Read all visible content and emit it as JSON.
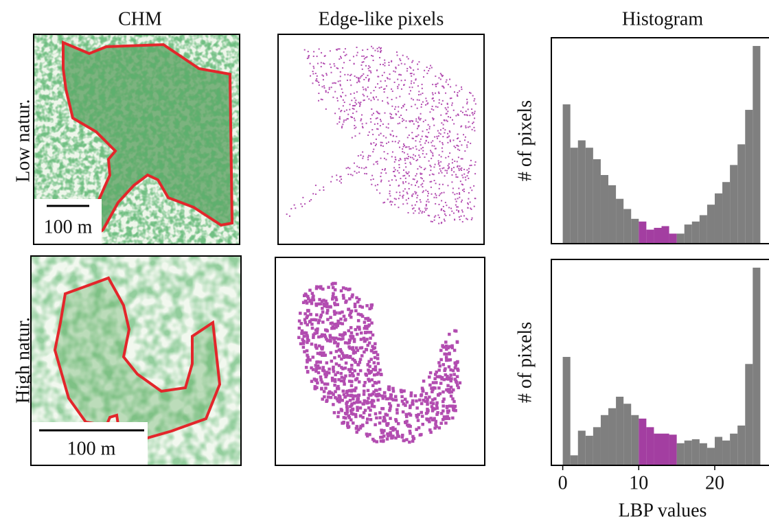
{
  "column_titles": [
    "CHM",
    "Edge-like pixels",
    "Histogram"
  ],
  "row_labels": [
    "Low natur.",
    "High natur."
  ],
  "scale_bars": [
    "100 m",
    "100 m"
  ],
  "chart_data": [
    {
      "type": "histogram",
      "ylabel": "# of pixels",
      "log_y": true,
      "bins": [
        0,
        1,
        2,
        3,
        4,
        5,
        6,
        7,
        8,
        9,
        10,
        11,
        12,
        13,
        14,
        15,
        16,
        17,
        18,
        19,
        20,
        21,
        22,
        23,
        24,
        25,
        26
      ],
      "values": [
        10700,
        2500,
        3200,
        2500,
        1700,
        1000,
        710,
        450,
        320,
        230,
        210,
        160,
        170,
        180,
        140,
        140,
        190,
        210,
        260,
        370,
        540,
        790,
        1400,
        2800,
        8900,
        75900
      ],
      "colors": [
        "#7f7f7f",
        "#7f7f7f",
        "#7f7f7f",
        "#7f7f7f",
        "#7f7f7f",
        "#7f7f7f",
        "#7f7f7f",
        "#7f7f7f",
        "#7f7f7f",
        "#7f7f7f",
        "#a33ea1",
        "#a33ea1",
        "#a33ea1",
        "#a33ea1",
        "#a33ea1",
        "#7f7f7f",
        "#7f7f7f",
        "#7f7f7f",
        "#7f7f7f",
        "#7f7f7f",
        "#7f7f7f",
        "#7f7f7f",
        "#7f7f7f",
        "#7f7f7f",
        "#7f7f7f",
        "#7f7f7f"
      ],
      "xlim": [
        -1.5,
        27.5
      ],
      "ylim": [
        100,
        100000
      ]
    },
    {
      "type": "histogram",
      "ylabel": "# of pixels",
      "xlabel": "LBP values",
      "log_y": true,
      "bins": [
        0,
        1,
        2,
        3,
        4,
        5,
        6,
        7,
        8,
        9,
        10,
        11,
        12,
        13,
        14,
        15,
        16,
        17,
        18,
        19,
        20,
        21,
        22,
        23,
        24,
        25,
        26
      ],
      "values": [
        3800,
        140,
        320,
        270,
        360,
        540,
        680,
        1000,
        790,
        540,
        480,
        360,
        290,
        290,
        280,
        210,
        230,
        240,
        210,
        180,
        260,
        230,
        290,
        380,
        3000,
        75900
      ],
      "colors": [
        "#7f7f7f",
        "#7f7f7f",
        "#7f7f7f",
        "#7f7f7f",
        "#7f7f7f",
        "#7f7f7f",
        "#7f7f7f",
        "#7f7f7f",
        "#7f7f7f",
        "#7f7f7f",
        "#a33ea1",
        "#a33ea1",
        "#a33ea1",
        "#a33ea1",
        "#a33ea1",
        "#7f7f7f",
        "#7f7f7f",
        "#7f7f7f",
        "#7f7f7f",
        "#7f7f7f",
        "#7f7f7f",
        "#7f7f7f",
        "#7f7f7f",
        "#7f7f7f",
        "#7f7f7f",
        "#7f7f7f"
      ],
      "xlim": [
        -1.5,
        27.5
      ],
      "ylim": [
        100,
        100000
      ],
      "xticks": [
        0,
        10,
        20
      ]
    }
  ]
}
